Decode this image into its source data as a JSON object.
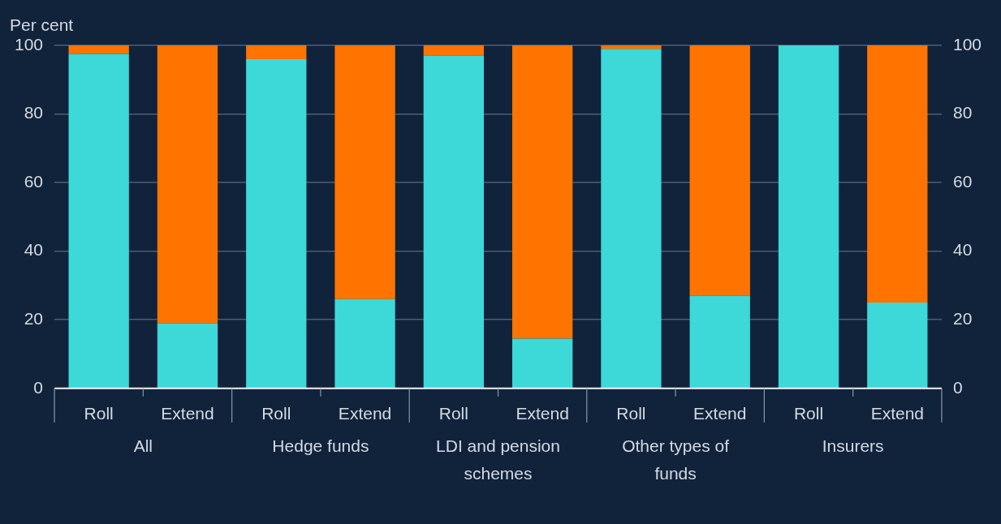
{
  "chart_data": {
    "type": "bar",
    "stacked": true,
    "ylabel": "Per cent",
    "categories": [
      "Roll",
      "Extend",
      "Roll",
      "Extend",
      "Roll",
      "Extend",
      "Roll",
      "Extend",
      "Roll",
      "Extend"
    ],
    "annotations": [
      "All",
      "Hedge funds",
      "LDI and pension schemes",
      "Other types of funds",
      "Insurers"
    ],
    "series": [
      {
        "color": "#3dd8d8",
        "values": [
          97.5,
          19,
          96,
          26,
          97,
          14.5,
          99,
          27,
          100,
          25
        ]
      },
      {
        "color": "#ff7400",
        "values": [
          2.5,
          81,
          4,
          74,
          3,
          85.5,
          1,
          73,
          0,
          75
        ]
      }
    ],
    "ylim": [
      0,
      100
    ],
    "yticks": [
      0,
      20,
      40,
      60,
      80,
      100
    ],
    "y2lim": [
      0,
      100
    ],
    "y2ticks": [
      0,
      20,
      40,
      60,
      80,
      100
    ],
    "grid": "y",
    "legend": false
  }
}
